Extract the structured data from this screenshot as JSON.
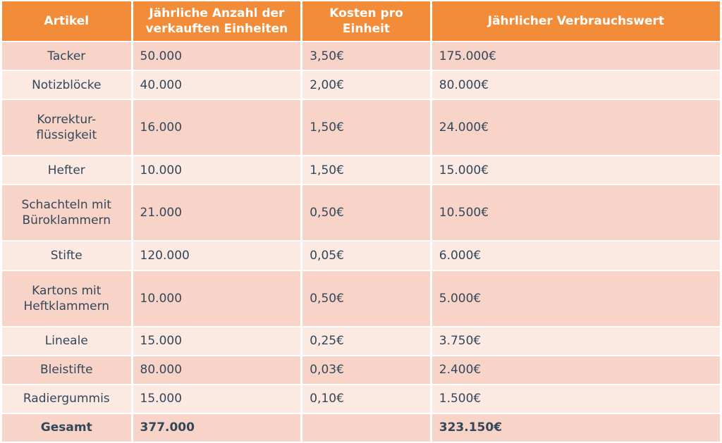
{
  "headers": [
    "Artikel",
    "Jährliche Anzahl der verkauften Einheiten",
    "Kosten pro Einheit",
    "Jährlicher Verbrauchswert"
  ],
  "rows": [
    [
      "Tacker",
      "50.000",
      "3,50€",
      "175.000€"
    ],
    [
      "Notizblöcke",
      "40.000",
      "2,00€",
      "80.000€"
    ],
    [
      "Korrektur-flüssigkeit",
      "16.000",
      "1,50€",
      "24.000€"
    ],
    [
      "Hefter",
      "10.000",
      "1,50€",
      "15.000€"
    ],
    [
      "Schachteln mit Büroklammern",
      "21.000",
      "0,50€",
      "10.500€"
    ],
    [
      "Stifte",
      "120.000",
      "0,05€",
      "6.000€"
    ],
    [
      "Kartons mit Heftklammern",
      "10.000",
      "0,50€",
      "5.000€"
    ],
    [
      "Lineale",
      "15.000",
      "0,25€",
      "3.750€"
    ],
    [
      "Bleistifte",
      "80.000",
      "0,03€",
      "2.400€"
    ],
    [
      "Radiergummis",
      "15.000",
      "0,10€",
      "1.500€"
    ]
  ],
  "total": [
    "Gesamt",
    "377.000",
    "",
    "323.150€"
  ],
  "colors": {
    "header_bg": "#f28c39",
    "row_dark": "#f8d4c8",
    "row_light": "#fce9e2",
    "text": "#33475b"
  }
}
